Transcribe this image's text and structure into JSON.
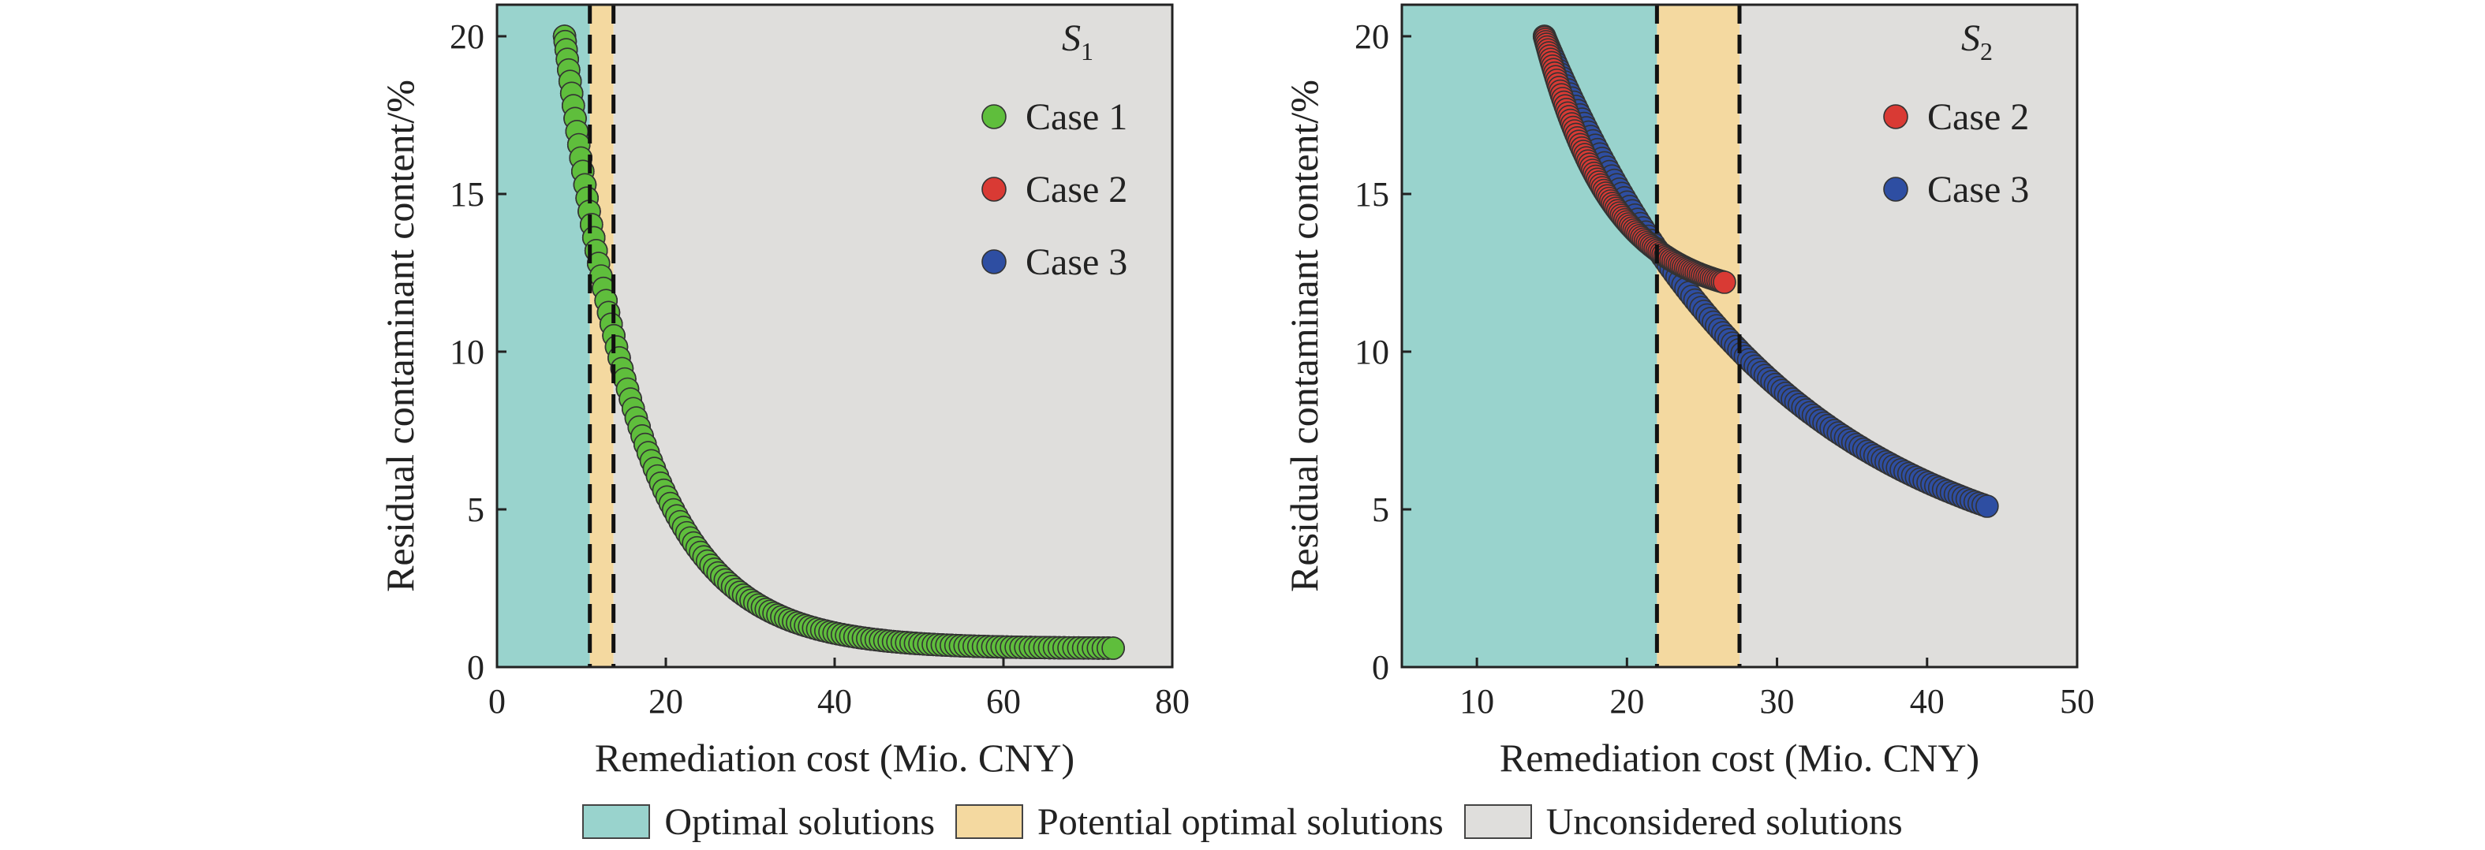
{
  "colors": {
    "optimal": "#99d3cd",
    "potential": "#f4d9a0",
    "unconsidered": "#dfdedc",
    "case1": "#5fbe3c",
    "case2": "#d93a34",
    "case3": "#2e4ea2"
  },
  "legend": {
    "optimal": "Optimal solutions",
    "potential": "Potential optimal solutions",
    "unconsidered": "Unconsidered solutions"
  },
  "chart_data": [
    {
      "type": "scatter",
      "panel_label": "S",
      "panel_sub": "1",
      "xlabel": "Remediation cost (Mio. CNY)",
      "ylabel": "Residual contaminant content/%",
      "xlim": [
        0,
        80
      ],
      "ylim": [
        0,
        21
      ],
      "xticks": [
        0,
        20,
        40,
        60,
        80
      ],
      "yticks": [
        0,
        5,
        10,
        15,
        20
      ],
      "regions": {
        "optimal": [
          0,
          11
        ],
        "potential": [
          11,
          13.8
        ],
        "unconsidered": [
          13.8,
          80
        ]
      },
      "thresholds": [
        11,
        13.8
      ],
      "legend_position": "top-right",
      "series": [
        {
          "name": "Case 1",
          "color_key": "case1",
          "x_range": [
            8,
            73
          ],
          "y_range": [
            20,
            0.6
          ],
          "decay": 0.115,
          "n": 150
        },
        {
          "name": "Case 2",
          "color_key": "case2",
          "x_range": [
            8,
            73
          ],
          "y_range": [
            20,
            0.6
          ],
          "decay": 0.115,
          "n": 150
        },
        {
          "name": "Case 3",
          "color_key": "case3",
          "x_range": [
            8,
            73
          ],
          "y_range": [
            20,
            0.6
          ],
          "decay": 0.115,
          "n": 150
        }
      ]
    },
    {
      "type": "scatter",
      "panel_label": "S",
      "panel_sub": "2",
      "xlabel": "Remediation cost (Mio. CNY)",
      "ylabel": "Residual contaminant content/%",
      "xlim": [
        5,
        50
      ],
      "ylim": [
        0,
        21
      ],
      "xticks": [
        10,
        20,
        30,
        40,
        50
      ],
      "yticks": [
        0,
        5,
        10,
        15,
        20
      ],
      "regions": {
        "optimal": [
          5,
          22
        ],
        "potential": [
          22,
          27.5
        ],
        "unconsidered": [
          27.5,
          50
        ]
      },
      "thresholds": [
        22,
        27.5
      ],
      "legend_position": "top-right",
      "series": [
        {
          "name": "Case 2",
          "color_key": "case2",
          "x_range": [
            14.5,
            26.5
          ],
          "y_range": [
            20,
            12.2
          ],
          "decay": 0.22,
          "n": 110
        },
        {
          "name": "Case 3",
          "color_key": "case3",
          "x_range": [
            14.5,
            44
          ],
          "y_range": [
            20,
            5.1
          ],
          "decay": 0.065,
          "n": 150
        }
      ]
    }
  ]
}
